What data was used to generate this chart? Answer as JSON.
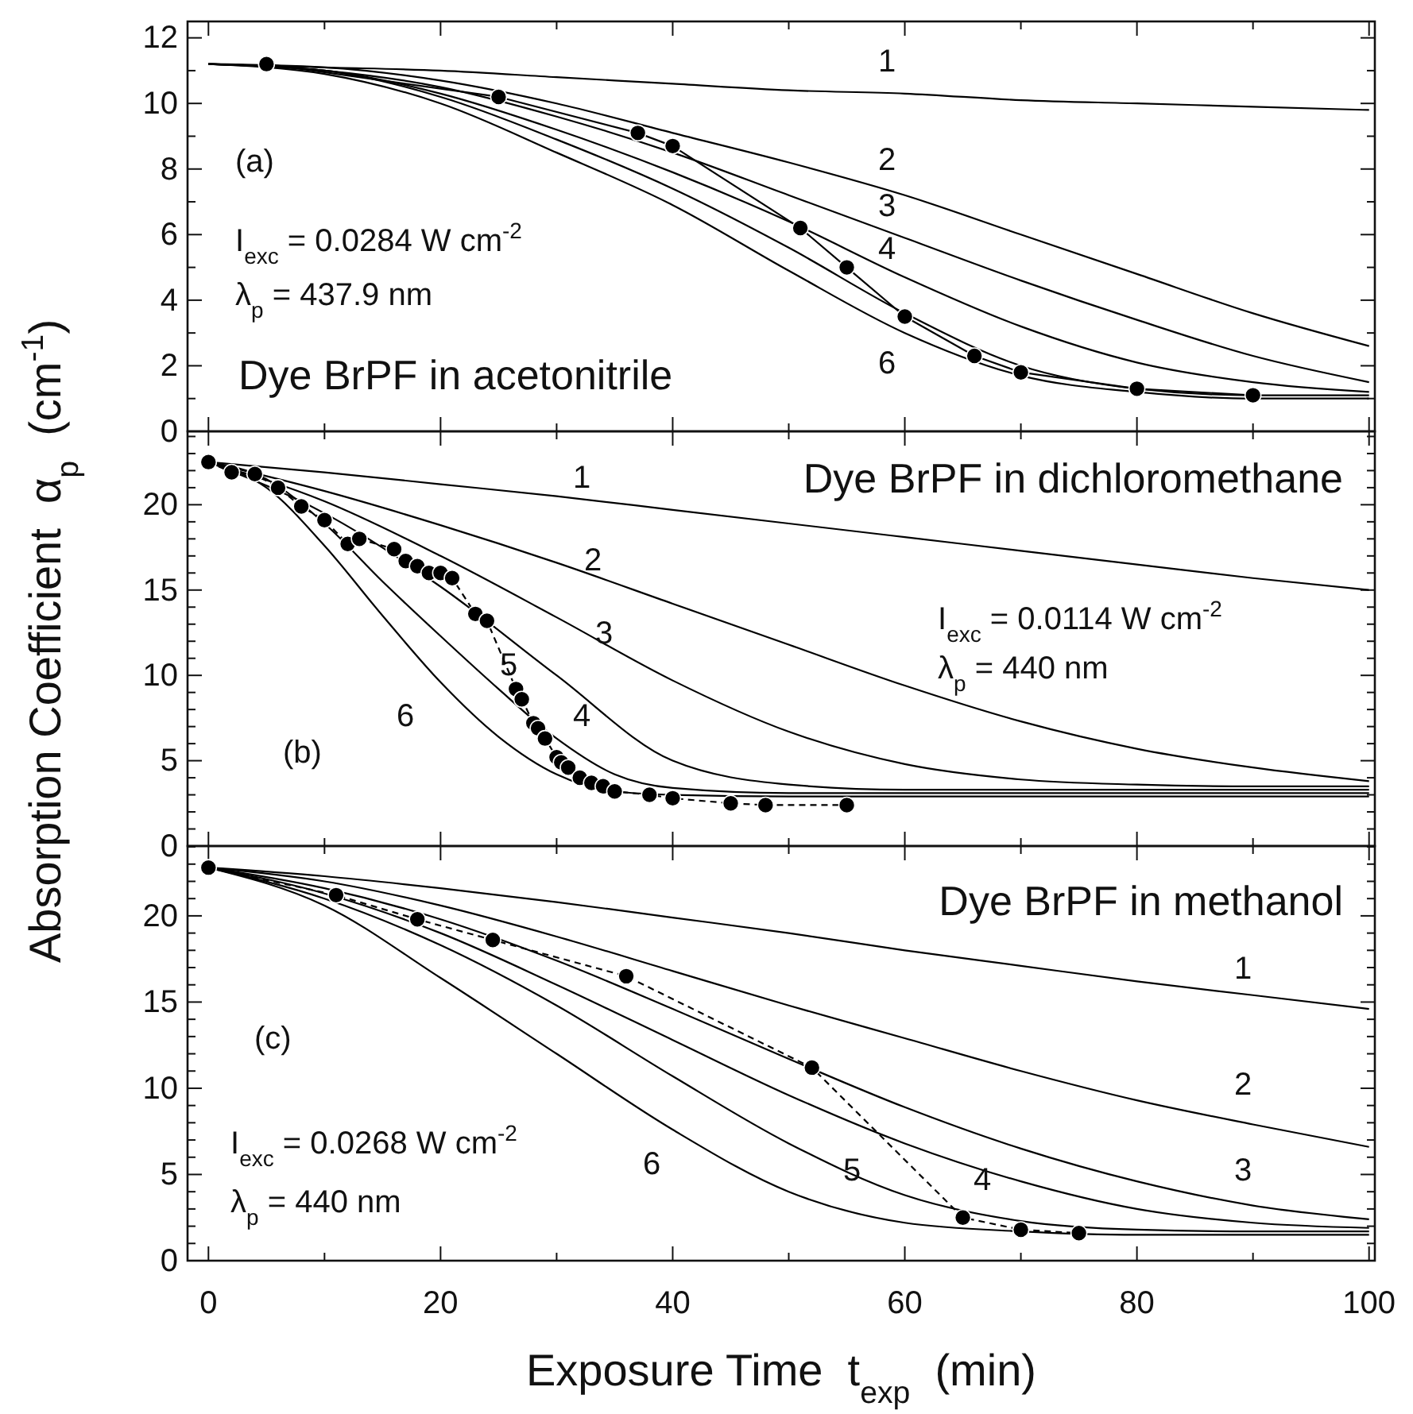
{
  "chart_data": [
    {
      "type": "line",
      "xlim": [
        -1.8,
        100.5
      ],
      "ylim": [
        0,
        12.5
      ],
      "xticks": [
        0,
        {
          "value": 10,
          "label": null
        },
        20,
        {
          "value": 30,
          "label": null
        },
        40,
        {
          "value": 50,
          "label": null
        },
        60,
        {
          "value": 70,
          "label": null
        },
        80,
        {
          "value": 90,
          "label": null
        },
        100
      ],
      "yticks": [
        0,
        {
          "value": 1,
          "label": null
        },
        2,
        {
          "value": 3,
          "label": null
        },
        4,
        {
          "value": 5,
          "label": null
        },
        6,
        {
          "value": 7,
          "label": null
        },
        8,
        {
          "value": 9,
          "label": null
        },
        10,
        {
          "value": 11,
          "label": null
        },
        12
      ],
      "tick_labels": "y",
      "grid": false,
      "series": [
        {
          "name": "1",
          "color": "#000000",
          "x": [
            0,
            10,
            20,
            30,
            40,
            50,
            60,
            70,
            80,
            90,
            100
          ],
          "values": [
            11.2,
            11.1,
            11.0,
            10.8,
            10.6,
            10.4,
            10.3,
            10.1,
            10.0,
            9.9,
            9.8
          ]
        },
        {
          "name": "2",
          "color": "#000000",
          "x": [
            0,
            10,
            20,
            30,
            40,
            50,
            60,
            70,
            80,
            90,
            100
          ],
          "values": [
            11.2,
            11.1,
            10.7,
            10.0,
            9.1,
            8.2,
            7.2,
            6.0,
            4.8,
            3.6,
            2.6
          ]
        },
        {
          "name": "3",
          "color": "#000000",
          "x": [
            0,
            10,
            20,
            30,
            40,
            50,
            60,
            70,
            80,
            90,
            100
          ],
          "values": [
            11.2,
            11.0,
            10.5,
            9.6,
            8.5,
            7.2,
            5.9,
            4.6,
            3.4,
            2.3,
            1.5
          ]
        },
        {
          "name": "4",
          "color": "#000000",
          "x": [
            0,
            10,
            20,
            30,
            40,
            50,
            60,
            70,
            80,
            90,
            100
          ],
          "values": [
            11.2,
            11.0,
            10.3,
            9.2,
            7.9,
            6.4,
            4.7,
            3.2,
            2.1,
            1.5,
            1.2
          ]
        },
        {
          "color": "#000000",
          "x": [
            0,
            10,
            20,
            30,
            40,
            50,
            60,
            70,
            80,
            90,
            100
          ],
          "values": [
            11.2,
            11.0,
            10.2,
            8.9,
            7.4,
            5.6,
            3.6,
            2.0,
            1.3,
            1.1,
            1.1
          ]
        },
        {
          "name": "6",
          "color": "#000000",
          "x": [
            0,
            10,
            20,
            30,
            40,
            50,
            60,
            70,
            80,
            90,
            100
          ],
          "values": [
            11.2,
            10.9,
            10.0,
            8.5,
            6.9,
            4.9,
            3.0,
            1.7,
            1.2,
            1.0,
            1.0
          ]
        },
        {
          "color": "#000000",
          "marker": "circle",
          "line_style": "solid",
          "x": [
            5,
            25,
            37,
            40,
            51,
            55,
            60,
            66,
            70,
            80,
            90
          ],
          "values": [
            11.2,
            10.2,
            9.1,
            8.7,
            6.2,
            5.0,
            3.5,
            2.3,
            1.8,
            1.3,
            1.1
          ]
        }
      ],
      "annotations": [
        "(a)",
        "I$_{exc}$ = 0.0284 W cm$^{-2}$",
        "λ$_{p}$ = 437.9 nm",
        "Dye BrPF in acetonitrile"
      ]
    },
    {
      "type": "line",
      "xlim": [
        -1.8,
        100.5
      ],
      "ylim": [
        0,
        24.3
      ],
      "xticks": [
        0,
        {
          "value": 10,
          "label": null
        },
        20,
        {
          "value": 30,
          "label": null
        },
        40,
        {
          "value": 50,
          "label": null
        },
        60,
        {
          "value": 70,
          "label": null
        },
        80,
        {
          "value": 90,
          "label": null
        },
        100
      ],
      "yticks": [
        0,
        {
          "value": 1,
          "label": null
        },
        {
          "value": 2,
          "label": null
        },
        {
          "value": 3,
          "label": null
        },
        {
          "value": 4,
          "label": null
        },
        5,
        {
          "value": 6,
          "label": null
        },
        {
          "value": 7,
          "label": null
        },
        {
          "value": 8,
          "label": null
        },
        {
          "value": 9,
          "label": null
        },
        10,
        {
          "value": 11,
          "label": null
        },
        {
          "value": 12,
          "label": null
        },
        {
          "value": 13,
          "label": null
        },
        {
          "value": 14,
          "label": null
        },
        15,
        {
          "value": 16,
          "label": null
        },
        {
          "value": 17,
          "label": null
        },
        {
          "value": 18,
          "label": null
        },
        {
          "value": 19,
          "label": null
        },
        20,
        {
          "value": 21,
          "label": null
        },
        {
          "value": 22,
          "label": null
        },
        {
          "value": 23,
          "label": null
        },
        {
          "value": 24,
          "label": null
        }
      ],
      "tick_labels": "y",
      "grid": false,
      "ylabel": "Absorption Coefficient  α$_{p}$  (cm$^{-1}$)",
      "series": [
        {
          "name": "1",
          "color": "#000000",
          "x": [
            0,
            10,
            20,
            30,
            40,
            50,
            60,
            70,
            80,
            90,
            100
          ],
          "values": [
            22.5,
            21.9,
            21.2,
            20.5,
            19.7,
            18.9,
            18.1,
            17.3,
            16.5,
            15.7,
            15.0
          ]
        },
        {
          "name": "2",
          "color": "#000000",
          "x": [
            0,
            10,
            20,
            30,
            40,
            50,
            60,
            70,
            80,
            90,
            100
          ],
          "values": [
            22.5,
            20.8,
            18.8,
            16.6,
            14.2,
            11.8,
            9.4,
            7.3,
            5.7,
            4.6,
            3.8
          ]
        },
        {
          "name": "3",
          "color": "#000000",
          "x": [
            0,
            10,
            20,
            30,
            40,
            50,
            60,
            70,
            80,
            90,
            100
          ],
          "values": [
            22.5,
            20.2,
            17.0,
            13.4,
            9.7,
            6.7,
            4.8,
            3.9,
            3.6,
            3.5,
            3.5
          ]
        },
        {
          "name": "4",
          "color": "#000000",
          "x": [
            0,
            10,
            20,
            30,
            40,
            50,
            60,
            70,
            80,
            90,
            100
          ],
          "values": [
            22.5,
            19.5,
            15.2,
            10.0,
            5.0,
            3.6,
            3.3,
            3.3,
            3.3,
            3.3,
            3.3
          ]
        },
        {
          "name": "5",
          "color": "#000000",
          "x": [
            0,
            5,
            10,
            15,
            20,
            25,
            30,
            35,
            40,
            50,
            60,
            80,
            100
          ],
          "values": [
            22.5,
            21.5,
            18.9,
            15.5,
            12.3,
            9.2,
            6.3,
            4.2,
            3.4,
            3.1,
            3.1,
            3.1,
            3.1
          ]
        },
        {
          "name": "6",
          "color": "#000000",
          "x": [
            0,
            5,
            10,
            15,
            20,
            25,
            30,
            35,
            40,
            50,
            60,
            80,
            100
          ],
          "values": [
            22.5,
            21.0,
            17.6,
            13.5,
            9.6,
            6.4,
            4.2,
            3.2,
            3.0,
            2.9,
            2.9,
            2.9,
            2.9
          ]
        },
        {
          "color": "#000000",
          "marker": "circle",
          "line_style": "dashed",
          "x": [
            0,
            2,
            4,
            6,
            8,
            10,
            12,
            13,
            16,
            17,
            18,
            19,
            20,
            21,
            23,
            24,
            26.5,
            27,
            28,
            28.4,
            29,
            30,
            30.4,
            31,
            32,
            33,
            34,
            35,
            38,
            40,
            45,
            48,
            55
          ],
          "values": [
            22.5,
            21.9,
            21.8,
            21.0,
            19.9,
            19.1,
            17.7,
            18.0,
            17.4,
            16.7,
            16.4,
            16.0,
            16.0,
            15.7,
            13.6,
            13.2,
            9.2,
            8.6,
            7.2,
            6.9,
            6.3,
            5.2,
            4.9,
            4.6,
            4.0,
            3.7,
            3.5,
            3.2,
            3.0,
            2.8,
            2.5,
            2.4,
            2.4
          ]
        }
      ],
      "annotations": [
        "Dye BrPF in dichloromethane",
        "I$_{exc}$ = 0.0114 W cm$^{-2}$",
        "λ$_{p}$ = 440 nm",
        "(b)"
      ]
    },
    {
      "type": "line",
      "xlim": [
        -1.8,
        100.5
      ],
      "ylim": [
        0,
        24.05
      ],
      "xticks": [
        0,
        {
          "value": 10,
          "label": null
        },
        20,
        {
          "value": 30,
          "label": null
        },
        40,
        {
          "value": 50,
          "label": null
        },
        60,
        {
          "value": 70,
          "label": null
        },
        80,
        {
          "value": 90,
          "label": null
        },
        100
      ],
      "yticks": [
        0,
        {
          "value": 1,
          "label": null
        },
        {
          "value": 2,
          "label": null
        },
        {
          "value": 3,
          "label": null
        },
        {
          "value": 4,
          "label": null
        },
        5,
        {
          "value": 6,
          "label": null
        },
        {
          "value": 7,
          "label": null
        },
        {
          "value": 8,
          "label": null
        },
        {
          "value": 9,
          "label": null
        },
        10,
        {
          "value": 11,
          "label": null
        },
        {
          "value": 12,
          "label": null
        },
        {
          "value": 13,
          "label": null
        },
        {
          "value": 14,
          "label": null
        },
        15,
        {
          "value": 16,
          "label": null
        },
        {
          "value": 17,
          "label": null
        },
        {
          "value": 18,
          "label": null
        },
        {
          "value": 19,
          "label": null
        },
        20,
        {
          "value": 21,
          "label": null
        },
        {
          "value": 22,
          "label": null
        },
        {
          "value": 23,
          "label": null
        },
        {
          "value": 24,
          "label": null
        }
      ],
      "grid": false,
      "xlabel": "Exposure Time  t$_{exp}$  (min)",
      "series": [
        {
          "name": "1",
          "color": "#000000",
          "x": [
            0,
            10,
            20,
            30,
            40,
            50,
            60,
            70,
            80,
            90,
            100
          ],
          "values": [
            22.8,
            22.3,
            21.6,
            20.8,
            19.9,
            19.0,
            18.0,
            17.1,
            16.2,
            15.4,
            14.6
          ]
        },
        {
          "name": "2",
          "color": "#000000",
          "x": [
            0,
            10,
            20,
            30,
            40,
            50,
            60,
            70,
            80,
            90,
            100
          ],
          "values": [
            22.8,
            22.0,
            20.6,
            18.8,
            16.8,
            14.8,
            12.9,
            11.0,
            9.3,
            7.9,
            6.6
          ]
        },
        {
          "name": "3",
          "color": "#000000",
          "x": [
            0,
            10,
            20,
            30,
            40,
            50,
            60,
            70,
            80,
            90,
            100
          ],
          "values": [
            22.8,
            21.6,
            19.8,
            17.4,
            14.6,
            11.7,
            8.9,
            6.5,
            4.6,
            3.2,
            2.4
          ]
        },
        {
          "name": "4",
          "color": "#000000",
          "x": [
            0,
            10,
            20,
            30,
            40,
            50,
            60,
            70,
            80,
            90,
            100
          ],
          "values": [
            22.8,
            21.3,
            19.0,
            16.0,
            12.8,
            9.6,
            6.8,
            4.6,
            3.0,
            2.2,
            1.9
          ]
        },
        {
          "name": "5",
          "color": "#000000",
          "x": [
            0,
            10,
            20,
            30,
            40,
            50,
            60,
            70,
            80,
            90,
            100
          ],
          "values": [
            22.8,
            21.0,
            18.3,
            14.8,
            10.7,
            6.8,
            3.8,
            2.3,
            1.8,
            1.7,
            1.7
          ]
        },
        {
          "name": "6",
          "color": "#000000",
          "x": [
            0,
            10,
            20,
            30,
            40,
            50,
            60,
            70,
            80,
            90,
            100
          ],
          "values": [
            22.8,
            20.6,
            16.4,
            12.0,
            7.6,
            4.0,
            2.2,
            1.7,
            1.5,
            1.5,
            1.5
          ]
        },
        {
          "color": "#000000",
          "marker": "circle",
          "line_style": "dashed",
          "x": [
            0,
            11,
            18,
            24.5,
            36,
            52,
            65,
            70,
            75
          ],
          "values": [
            22.8,
            21.2,
            19.8,
            18.6,
            16.5,
            11.2,
            2.5,
            1.8,
            1.6
          ]
        }
      ],
      "annotations": [
        "Dye BrPF in methanol",
        "(c)",
        "I$_{exc}$ = 0.0268 W cm$^{-2}$",
        "λ$_{p}$ = 440 nm"
      ]
    }
  ]
}
